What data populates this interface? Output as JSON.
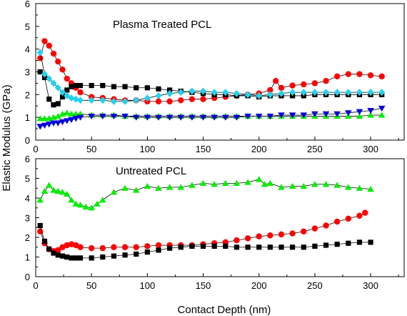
{
  "figure": {
    "ylabel": "Elastic Modulus (GPa)",
    "xlabel": "Contact Depth (nm)"
  },
  "chart_data": [
    {
      "type": "scatter",
      "title": "Plasma Treated PCL",
      "xlim": [
        0,
        330
      ],
      "ylim": [
        0,
        6
      ],
      "xticks": [
        0,
        50,
        100,
        150,
        200,
        250,
        300
      ],
      "yticks": [
        0,
        1,
        2,
        3,
        4,
        5,
        6
      ],
      "grid": false,
      "series": [
        {
          "marker": "circle",
          "color": "#ff0000",
          "x": [
            4,
            8,
            12,
            16,
            20,
            24,
            28,
            32,
            36,
            40,
            50,
            60,
            70,
            80,
            90,
            100,
            110,
            120,
            130,
            140,
            150,
            160,
            170,
            180,
            190,
            200,
            210,
            215,
            220,
            230,
            240,
            250,
            260,
            270,
            280,
            290,
            300,
            310
          ],
          "y": [
            3.6,
            4.35,
            4.15,
            3.8,
            3.45,
            3.1,
            2.7,
            2.5,
            2.3,
            2.1,
            1.9,
            1.85,
            1.8,
            1.75,
            1.75,
            1.7,
            1.7,
            1.7,
            1.75,
            1.8,
            1.8,
            1.85,
            1.9,
            1.95,
            2.0,
            2.05,
            2.2,
            2.6,
            2.3,
            2.4,
            2.45,
            2.5,
            2.6,
            2.8,
            2.9,
            2.9,
            2.85,
            2.8
          ]
        },
        {
          "marker": "square",
          "color": "#000000",
          "x": [
            4,
            8,
            12,
            16,
            20,
            24,
            28,
            32,
            36,
            40,
            50,
            60,
            70,
            80,
            90,
            100,
            110,
            120,
            130,
            140,
            150,
            160,
            170,
            180,
            190,
            200,
            210,
            220,
            230,
            240,
            250,
            260,
            270,
            280,
            290,
            300,
            310
          ],
          "y": [
            3.0,
            2.75,
            1.8,
            1.55,
            1.6,
            1.9,
            2.2,
            2.35,
            2.4,
            2.4,
            2.4,
            2.4,
            2.35,
            2.35,
            2.3,
            2.3,
            2.25,
            2.2,
            2.15,
            2.1,
            2.05,
            2.0,
            2.0,
            1.95,
            1.95,
            1.9,
            1.95,
            1.95,
            1.95,
            1.95,
            2.0,
            2.0,
            2.0,
            2.0,
            2.0,
            2.0,
            2.0
          ]
        },
        {
          "marker": "diamond",
          "color": "#22d3ee",
          "x": [
            4,
            8,
            12,
            16,
            20,
            24,
            28,
            32,
            36,
            40,
            50,
            60,
            70,
            80,
            90,
            100,
            110,
            120,
            130,
            140,
            150,
            160,
            170,
            180,
            190,
            200,
            210,
            220,
            230,
            240,
            250,
            260,
            270,
            280,
            290,
            300,
            310
          ],
          "y": [
            3.85,
            2.9,
            2.7,
            2.5,
            2.3,
            2.1,
            1.95,
            1.85,
            1.8,
            1.75,
            1.75,
            1.75,
            1.7,
            1.7,
            1.75,
            1.85,
            1.95,
            2.05,
            2.1,
            2.15,
            2.15,
            2.1,
            2.1,
            2.05,
            2.0,
            1.95,
            2.0,
            2.05,
            2.1,
            2.1,
            2.1,
            2.1,
            2.1,
            2.1,
            2.1,
            2.1,
            2.1
          ]
        },
        {
          "marker": "triangle-up",
          "color": "#00ee00",
          "x": [
            4,
            8,
            12,
            16,
            20,
            24,
            28,
            32,
            36,
            40,
            50,
            60,
            70,
            80,
            90,
            100,
            110,
            120,
            130,
            140,
            150,
            160,
            170,
            180,
            190,
            200,
            210,
            220,
            230,
            240,
            250,
            260,
            270,
            280,
            290,
            300,
            310
          ],
          "y": [
            0.95,
            0.95,
            0.95,
            1.0,
            1.05,
            1.15,
            1.2,
            1.15,
            1.15,
            1.15,
            1.1,
            1.1,
            1.1,
            1.05,
            1.05,
            1.05,
            1.05,
            1.05,
            1.05,
            1.05,
            1.05,
            1.05,
            1.05,
            1.05,
            1.05,
            1.05,
            1.05,
            1.05,
            1.05,
            1.05,
            1.05,
            1.05,
            1.05,
            1.05,
            1.05,
            1.1,
            1.1
          ]
        },
        {
          "marker": "triangle-down",
          "color": "#0000dd",
          "x": [
            4,
            8,
            12,
            16,
            20,
            24,
            28,
            32,
            36,
            40,
            50,
            60,
            70,
            80,
            90,
            100,
            110,
            120,
            130,
            140,
            150,
            160,
            170,
            180,
            190,
            200,
            210,
            220,
            230,
            240,
            250,
            260,
            270,
            280,
            290,
            300,
            310
          ],
          "y": [
            0.6,
            0.65,
            0.7,
            0.75,
            0.75,
            0.8,
            0.85,
            0.9,
            0.95,
            1.0,
            1.05,
            1.05,
            1.05,
            1.05,
            1.0,
            1.0,
            1.0,
            1.0,
            1.0,
            1.0,
            1.0,
            1.0,
            1.0,
            1.0,
            1.05,
            1.05,
            1.05,
            1.1,
            1.1,
            1.1,
            1.15,
            1.15,
            1.15,
            1.2,
            1.25,
            1.3,
            1.4
          ]
        }
      ]
    },
    {
      "type": "scatter",
      "title": "Untreated PCL",
      "xlim": [
        0,
        330
      ],
      "ylim": [
        0,
        6
      ],
      "xticks": [
        0,
        50,
        100,
        150,
        200,
        250,
        300
      ],
      "yticks": [
        0,
        1,
        2,
        3,
        4,
        5,
        6
      ],
      "grid": false,
      "series": [
        {
          "marker": "triangle-up",
          "color": "#00ee00",
          "x": [
            4,
            8,
            12,
            16,
            20,
            24,
            28,
            32,
            36,
            40,
            45,
            50,
            55,
            60,
            70,
            80,
            90,
            100,
            110,
            120,
            130,
            140,
            150,
            160,
            170,
            180,
            190,
            200,
            205,
            210,
            220,
            230,
            240,
            250,
            260,
            270,
            280,
            290,
            300
          ],
          "y": [
            3.9,
            4.35,
            4.65,
            4.4,
            4.35,
            4.3,
            4.2,
            3.9,
            3.7,
            3.65,
            3.55,
            3.5,
            3.7,
            3.9,
            4.3,
            4.5,
            4.4,
            4.6,
            4.5,
            4.55,
            4.55,
            4.65,
            4.75,
            4.7,
            4.75,
            4.75,
            4.8,
            4.95,
            4.7,
            4.75,
            4.55,
            4.6,
            4.6,
            4.7,
            4.7,
            4.65,
            4.55,
            4.5,
            4.45
          ]
        },
        {
          "marker": "circle",
          "color": "#ff0000",
          "x": [
            4,
            8,
            12,
            16,
            20,
            24,
            28,
            32,
            36,
            40,
            50,
            60,
            70,
            80,
            90,
            100,
            110,
            120,
            130,
            140,
            150,
            160,
            170,
            180,
            190,
            200,
            210,
            220,
            230,
            240,
            250,
            260,
            270,
            280,
            290,
            295
          ],
          "y": [
            2.3,
            1.7,
            1.4,
            1.3,
            1.35,
            1.5,
            1.6,
            1.65,
            1.6,
            1.5,
            1.45,
            1.45,
            1.5,
            1.5,
            1.5,
            1.55,
            1.6,
            1.6,
            1.6,
            1.6,
            1.65,
            1.7,
            1.75,
            1.85,
            1.95,
            2.05,
            2.1,
            2.15,
            2.2,
            2.3,
            2.45,
            2.6,
            2.8,
            2.95,
            3.1,
            3.25
          ]
        },
        {
          "marker": "square",
          "color": "#000000",
          "x": [
            4,
            8,
            12,
            16,
            20,
            24,
            28,
            32,
            36,
            40,
            50,
            60,
            70,
            80,
            90,
            100,
            110,
            120,
            130,
            140,
            150,
            160,
            170,
            180,
            190,
            200,
            210,
            220,
            230,
            240,
            250,
            260,
            270,
            280,
            290,
            300
          ],
          "y": [
            2.6,
            1.8,
            1.4,
            1.2,
            1.1,
            1.05,
            1.0,
            0.95,
            0.95,
            0.95,
            0.95,
            1.0,
            1.05,
            1.1,
            1.15,
            1.25,
            1.35,
            1.45,
            1.5,
            1.55,
            1.55,
            1.55,
            1.55,
            1.5,
            1.5,
            1.5,
            1.5,
            1.5,
            1.5,
            1.5,
            1.55,
            1.6,
            1.65,
            1.7,
            1.75,
            1.75
          ]
        }
      ]
    }
  ]
}
